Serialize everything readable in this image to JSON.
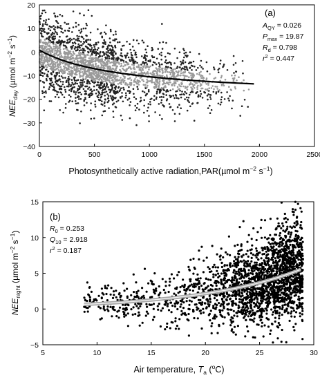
{
  "chart_data": [
    {
      "type": "scatter",
      "panel_label": "(a)",
      "ylabel_main": "NEE",
      "ylabel_sub": "day",
      "ylabel_units": " (µmol m",
      "ylabel_exp1": "−2",
      "ylabel_mid": " s",
      "ylabel_exp2": "−1",
      "ylabel_close": ")",
      "xlabel_main": "Photosynthetically active radiation,PAR(µmol m",
      "xlabel_exp1": "−2",
      "xlabel_mid": " s",
      "xlabel_exp2": "−1",
      "xlabel_close": ")",
      "xlim": [
        0,
        2500
      ],
      "ylim": [
        -40,
        20
      ],
      "xticks": [
        "0",
        "500",
        "1000",
        "1500",
        "2000",
        "2500"
      ],
      "yticks": [
        "−40",
        "−30",
        "−20",
        "−10",
        "0",
        "10",
        "20"
      ],
      "params": {
        "aqy_sym": "A",
        "aqy_sub": "QY",
        "aqy_val": " = 0.026",
        "pmax_sym": "P",
        "pmax_sub": "max",
        "pmax_val": " = 19.87",
        "rd_sym": "R",
        "rd_sub": "d",
        "rd_val": " = 0.798",
        "r2_sym": "r",
        "r2_sup": "2",
        "r2_val": " = 0.447"
      },
      "fit": {
        "aqy": 0.026,
        "pmax": 19.87,
        "rd": 0.798,
        "x_range": [
          0,
          1950
        ]
      },
      "points": {
        "count": 2600,
        "x_max": 1950,
        "scatter_sd_low_par": 8,
        "scatter_sd_high_par": 4.5,
        "color": "#222222",
        "core_color": "#9a9a9a"
      }
    },
    {
      "type": "scatter",
      "panel_label": "(b)",
      "ylabel_main": "NEE",
      "ylabel_sub": "night",
      "ylabel_units": " (µmol m",
      "ylabel_exp1": "−2",
      "ylabel_mid": " s",
      "ylabel_exp2": "−1",
      "ylabel_close": ")",
      "xlabel_main": "Air temperature, ",
      "xlabel_sym": "T",
      "xlabel_sub": "a",
      "xlabel_unit_open": " (",
      "xlabel_unit_sup": "o",
      "xlabel_unit_close": "C)",
      "xlim": [
        5,
        30
      ],
      "ylim": [
        -5,
        15
      ],
      "xticks": [
        "5",
        "10",
        "15",
        "20",
        "25",
        "30"
      ],
      "yticks": [
        "−5",
        "0",
        "5",
        "10",
        "15"
      ],
      "params": {
        "r0_sym": "R",
        "r0_sub": "0",
        "r0_val": " = 0.253",
        "q10_sym": "Q",
        "q10_sub": "10",
        "q10_val": " = 2.918",
        "r2_sym": "r",
        "r2_sup": "2",
        "r2_val": " = 0.187"
      },
      "fit": {
        "r0": 0.253,
        "q10": 2.918,
        "x_range": [
          8.8,
          28.8
        ]
      },
      "points": {
        "count": 2300,
        "t_min": 8.8,
        "t_max": 29,
        "color": "#000000"
      }
    }
  ]
}
